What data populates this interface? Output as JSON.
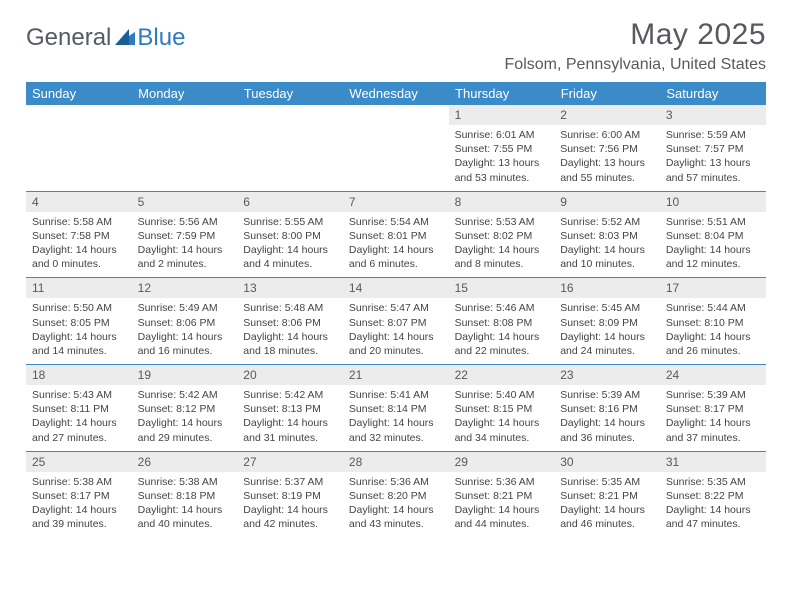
{
  "logo": {
    "text1": "General",
    "text2": "Blue"
  },
  "title": "May 2025",
  "location": "Folsom, Pennsylvania, United States",
  "colors": {
    "header_bg": "#3b8bc8",
    "header_text": "#ffffff",
    "daynum_bg": "#ececec",
    "text": "#444444",
    "title_text": "#565a60",
    "logo_gray": "#555a63",
    "logo_blue": "#2f7bbf"
  },
  "weekdays": [
    "Sunday",
    "Monday",
    "Tuesday",
    "Wednesday",
    "Thursday",
    "Friday",
    "Saturday"
  ],
  "weeks": [
    [
      null,
      null,
      null,
      null,
      {
        "n": "1",
        "sr": "6:01 AM",
        "ss": "7:55 PM",
        "dl": "13 hours and 53 minutes."
      },
      {
        "n": "2",
        "sr": "6:00 AM",
        "ss": "7:56 PM",
        "dl": "13 hours and 55 minutes."
      },
      {
        "n": "3",
        "sr": "5:59 AM",
        "ss": "7:57 PM",
        "dl": "13 hours and 57 minutes."
      }
    ],
    [
      {
        "n": "4",
        "sr": "5:58 AM",
        "ss": "7:58 PM",
        "dl": "14 hours and 0 minutes."
      },
      {
        "n": "5",
        "sr": "5:56 AM",
        "ss": "7:59 PM",
        "dl": "14 hours and 2 minutes."
      },
      {
        "n": "6",
        "sr": "5:55 AM",
        "ss": "8:00 PM",
        "dl": "14 hours and 4 minutes."
      },
      {
        "n": "7",
        "sr": "5:54 AM",
        "ss": "8:01 PM",
        "dl": "14 hours and 6 minutes."
      },
      {
        "n": "8",
        "sr": "5:53 AM",
        "ss": "8:02 PM",
        "dl": "14 hours and 8 minutes."
      },
      {
        "n": "9",
        "sr": "5:52 AM",
        "ss": "8:03 PM",
        "dl": "14 hours and 10 minutes."
      },
      {
        "n": "10",
        "sr": "5:51 AM",
        "ss": "8:04 PM",
        "dl": "14 hours and 12 minutes."
      }
    ],
    [
      {
        "n": "11",
        "sr": "5:50 AM",
        "ss": "8:05 PM",
        "dl": "14 hours and 14 minutes."
      },
      {
        "n": "12",
        "sr": "5:49 AM",
        "ss": "8:06 PM",
        "dl": "14 hours and 16 minutes."
      },
      {
        "n": "13",
        "sr": "5:48 AM",
        "ss": "8:06 PM",
        "dl": "14 hours and 18 minutes."
      },
      {
        "n": "14",
        "sr": "5:47 AM",
        "ss": "8:07 PM",
        "dl": "14 hours and 20 minutes."
      },
      {
        "n": "15",
        "sr": "5:46 AM",
        "ss": "8:08 PM",
        "dl": "14 hours and 22 minutes."
      },
      {
        "n": "16",
        "sr": "5:45 AM",
        "ss": "8:09 PM",
        "dl": "14 hours and 24 minutes."
      },
      {
        "n": "17",
        "sr": "5:44 AM",
        "ss": "8:10 PM",
        "dl": "14 hours and 26 minutes."
      }
    ],
    [
      {
        "n": "18",
        "sr": "5:43 AM",
        "ss": "8:11 PM",
        "dl": "14 hours and 27 minutes."
      },
      {
        "n": "19",
        "sr": "5:42 AM",
        "ss": "8:12 PM",
        "dl": "14 hours and 29 minutes."
      },
      {
        "n": "20",
        "sr": "5:42 AM",
        "ss": "8:13 PM",
        "dl": "14 hours and 31 minutes."
      },
      {
        "n": "21",
        "sr": "5:41 AM",
        "ss": "8:14 PM",
        "dl": "14 hours and 32 minutes."
      },
      {
        "n": "22",
        "sr": "5:40 AM",
        "ss": "8:15 PM",
        "dl": "14 hours and 34 minutes."
      },
      {
        "n": "23",
        "sr": "5:39 AM",
        "ss": "8:16 PM",
        "dl": "14 hours and 36 minutes."
      },
      {
        "n": "24",
        "sr": "5:39 AM",
        "ss": "8:17 PM",
        "dl": "14 hours and 37 minutes."
      }
    ],
    [
      {
        "n": "25",
        "sr": "5:38 AM",
        "ss": "8:17 PM",
        "dl": "14 hours and 39 minutes."
      },
      {
        "n": "26",
        "sr": "5:38 AM",
        "ss": "8:18 PM",
        "dl": "14 hours and 40 minutes."
      },
      {
        "n": "27",
        "sr": "5:37 AM",
        "ss": "8:19 PM",
        "dl": "14 hours and 42 minutes."
      },
      {
        "n": "28",
        "sr": "5:36 AM",
        "ss": "8:20 PM",
        "dl": "14 hours and 43 minutes."
      },
      {
        "n": "29",
        "sr": "5:36 AM",
        "ss": "8:21 PM",
        "dl": "14 hours and 44 minutes."
      },
      {
        "n": "30",
        "sr": "5:35 AM",
        "ss": "8:21 PM",
        "dl": "14 hours and 46 minutes."
      },
      {
        "n": "31",
        "sr": "5:35 AM",
        "ss": "8:22 PM",
        "dl": "14 hours and 47 minutes."
      }
    ]
  ],
  "labels": {
    "sunrise": "Sunrise:",
    "sunset": "Sunset:",
    "daylight": "Daylight:"
  }
}
